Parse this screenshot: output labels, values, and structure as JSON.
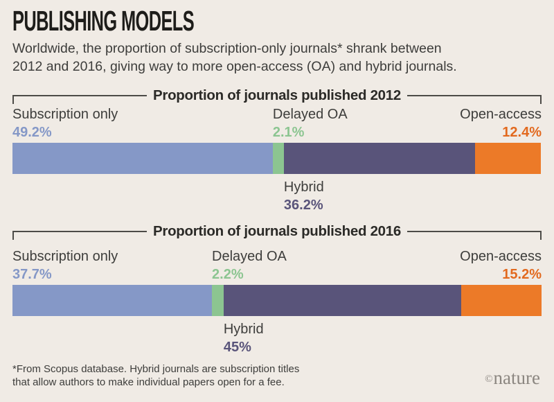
{
  "page": {
    "title": "PUBLISHING MODELS",
    "subtitle_line1": "Worldwide, the proportion of subscription-only journals* shrank between",
    "subtitle_line2": "2012 and 2016, giving way to more open-access (OA) and hybrid journals.",
    "footnote_line1": "*From Scopus database. Hybrid journals are subscription titles",
    "footnote_line2": "that allow authors to make individual papers open for a fee.",
    "credit_symbol": "©",
    "credit_name": "nature"
  },
  "colors": {
    "background": "#f0ebe5",
    "subscription": "#8598c7",
    "delayed": "#8cc591",
    "hybrid": "#59547a",
    "openaccess": "#ec7a28",
    "openaccess_text": "#e2691e",
    "frame_line": "#4c4b47"
  },
  "chart_data": [
    {
      "type": "bar",
      "orientation": "horizontal-stacked",
      "title": "Proportion of journals published 2012",
      "categories": [
        "Subscription only",
        "Delayed OA",
        "Hybrid",
        "Open-access"
      ],
      "values": [
        49.2,
        2.1,
        36.2,
        12.4
      ],
      "labels": [
        "49.2%",
        "2.1%",
        "36.2%",
        "12.4%"
      ],
      "xlim": [
        0,
        100
      ],
      "unit": "%",
      "legend_position": "labels-around-bar"
    },
    {
      "type": "bar",
      "orientation": "horizontal-stacked",
      "title": "Proportion of journals published 2016",
      "categories": [
        "Subscription only",
        "Delayed OA",
        "Hybrid",
        "Open-access"
      ],
      "values": [
        37.7,
        2.2,
        45,
        15.2
      ],
      "labels": [
        "37.7%",
        "2.2%",
        "45%",
        "15.2%"
      ],
      "xlim": [
        0,
        100
      ],
      "unit": "%",
      "legend_position": "labels-around-bar"
    }
  ]
}
